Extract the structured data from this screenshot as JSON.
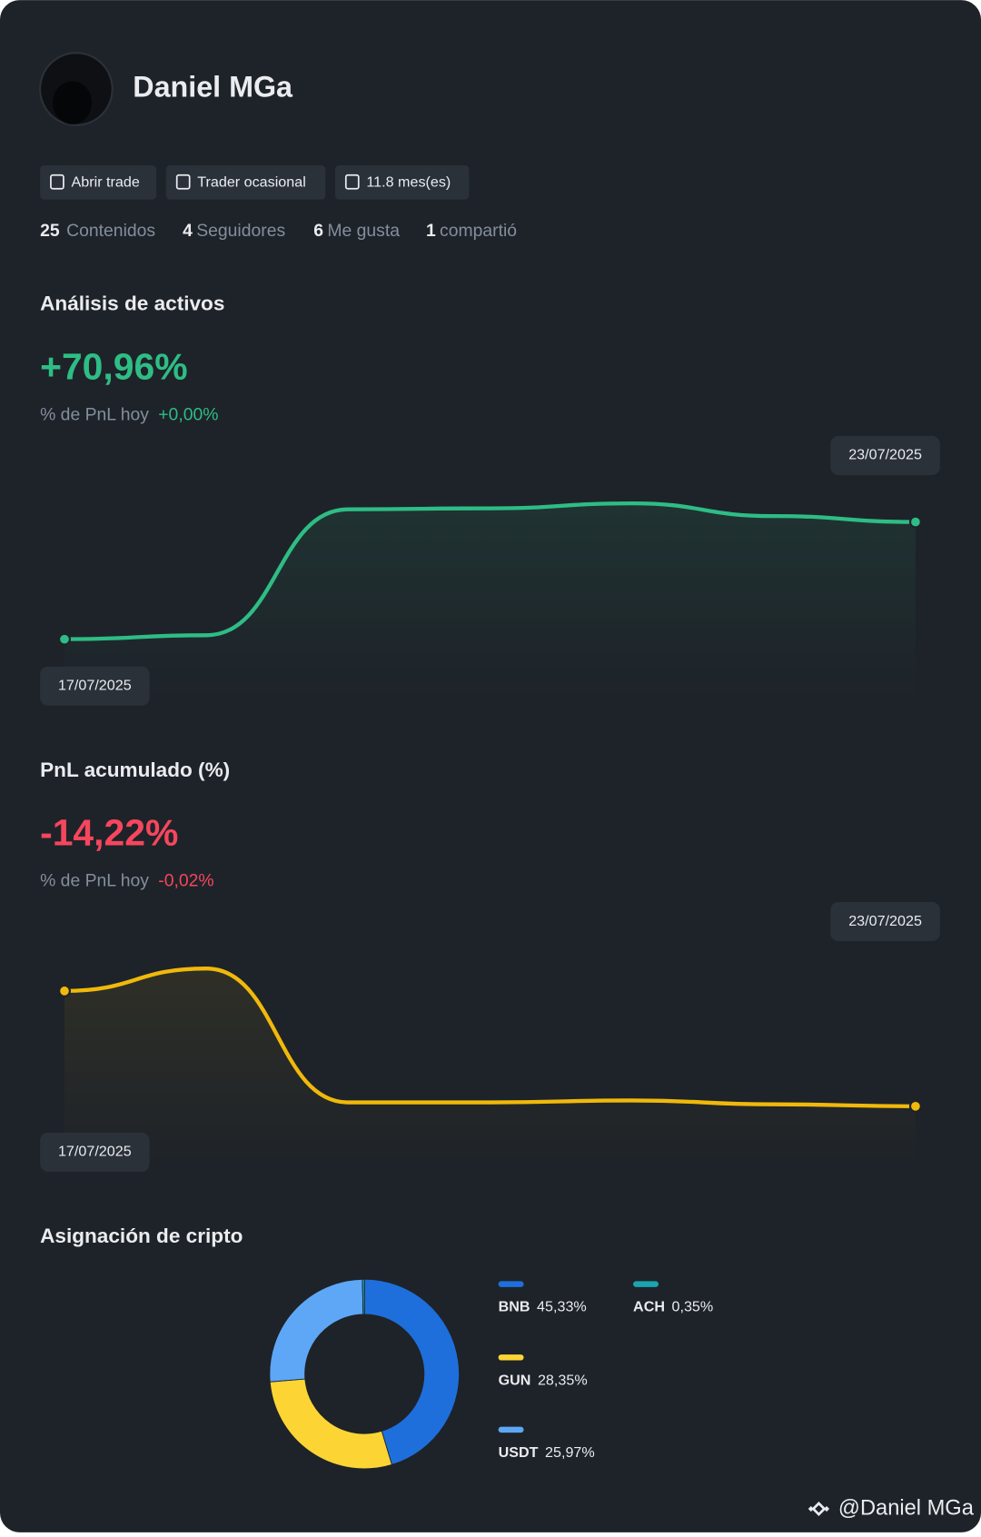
{
  "profile": {
    "name": "Daniel MGa",
    "badges": [
      "Abrir trade",
      "Trader ocasional",
      "11.8 mes(es)"
    ],
    "stats": [
      {
        "value": 25,
        "label": "Contenidos"
      },
      {
        "value": 4,
        "label": "Seguidores"
      },
      {
        "value": 6,
        "label": "Me gusta"
      },
      {
        "value": 1,
        "label": "compartió"
      }
    ]
  },
  "chart_data": [
    {
      "type": "line",
      "title": "Análisis de activos",
      "headline": "+70,96%",
      "today_label": "% de PnL hoy",
      "today_value": "+0,00%",
      "x": [
        "17/07/2025",
        null,
        null,
        null,
        null,
        null,
        "23/07/2025"
      ],
      "values": [
        0,
        2.4,
        78.6,
        79.2,
        82.2,
        74.5,
        70.96
      ],
      "color": "#2ebd85"
    },
    {
      "type": "line",
      "title": "PnL acumulado (%)",
      "headline": "-14,22%",
      "today_label": "% de PnL hoy",
      "today_value": "-0,02%",
      "x": [
        "17/07/2025",
        null,
        null,
        null,
        null,
        null,
        "23/07/2025"
      ],
      "values": [
        0,
        2.77,
        -13.74,
        -13.74,
        -13.5,
        -13.98,
        -14.22
      ],
      "color": "#f0b90b"
    },
    {
      "type": "pie",
      "title": "Asignación de cripto",
      "categories": [
        "BNB",
        "GUN",
        "USDT",
        "ACH"
      ],
      "values": [
        45.33,
        28.35,
        25.97,
        0.35
      ],
      "value_labels": [
        "45,33%",
        "28,35%",
        "25,97%",
        "0,35%"
      ],
      "colors": [
        "#1e6fdc",
        "#fcd535",
        "#5ea7f7",
        "#1ba3b0"
      ]
    }
  ],
  "footer": "@Daniel MGa"
}
